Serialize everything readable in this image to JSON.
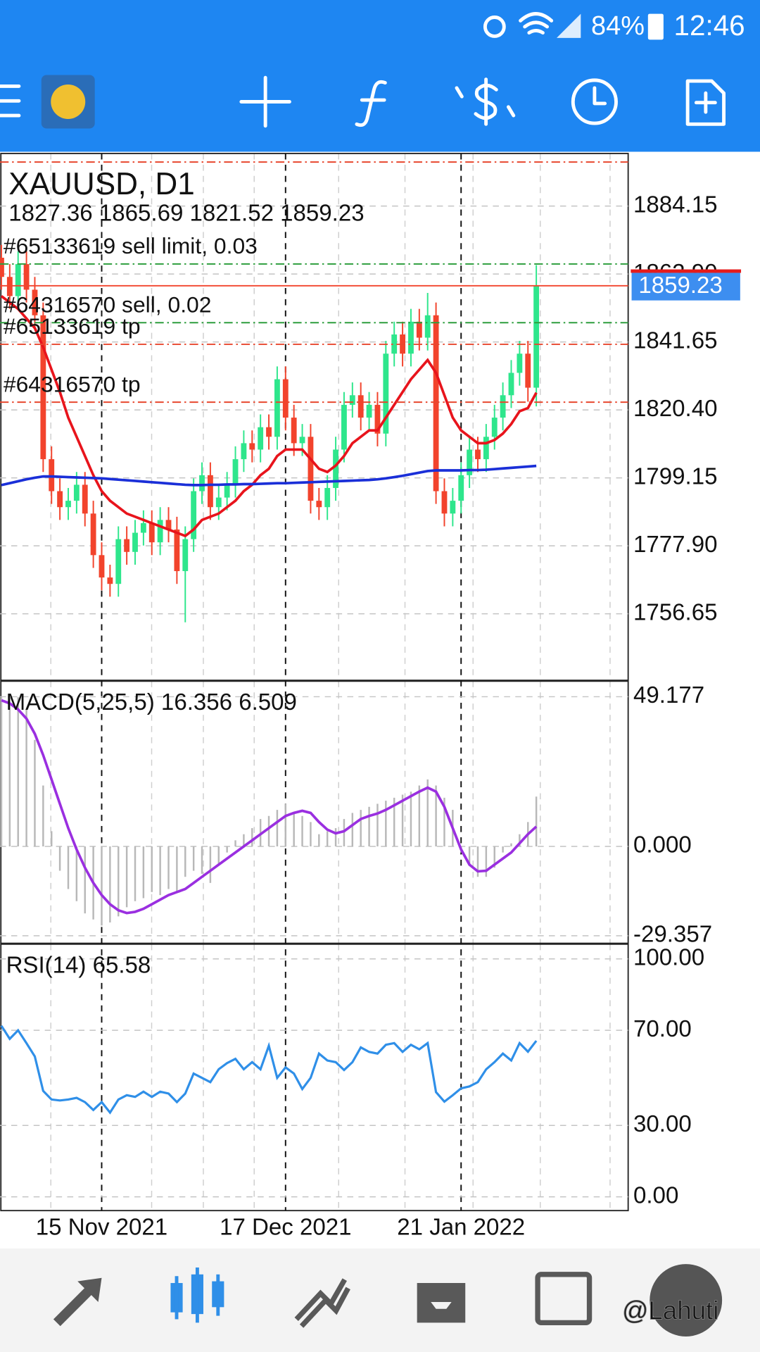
{
  "status_bar": {
    "battery": "84%",
    "time": "12:46"
  },
  "watermark": "@Lahuti",
  "chart_data": [
    {
      "type": "candlestick",
      "title": "XAUUSD, D1",
      "subtitle": "1827.36 1865.69 1821.52 1859.23",
      "categories": [
        null,
        null,
        null,
        null,
        null,
        null,
        null,
        null,
        null,
        null,
        null,
        null,
        "15 Nov 2021",
        null,
        null,
        null,
        null,
        null,
        null,
        null,
        null,
        null,
        null,
        null,
        null,
        null,
        null,
        null,
        null,
        null,
        null,
        null,
        null,
        null,
        "17 Dec 2021",
        null,
        null,
        null,
        null,
        null,
        null,
        null,
        null,
        null,
        null,
        null,
        null,
        null,
        null,
        null,
        null,
        null,
        null,
        null,
        null,
        "21 Jan 2022",
        null,
        null,
        null,
        null,
        null,
        null,
        null,
        null,
        null
      ],
      "open": [
        1868,
        1862,
        1856,
        1866,
        1858,
        1850,
        1805,
        1795,
        1790,
        1792,
        1797,
        1788,
        1775,
        1768,
        1766,
        1780,
        1776,
        1782,
        1785,
        1779,
        1786,
        1783,
        1770,
        1780,
        1795,
        1800,
        1790,
        1793,
        1797,
        1805,
        1810,
        1808,
        1815,
        1812,
        1830,
        1818,
        1810,
        1812,
        1792,
        1790,
        1796,
        1808,
        1822,
        1825,
        1818,
        1822,
        1813,
        1838,
        1844,
        1838,
        1848,
        1843,
        1850,
        1795,
        1788,
        1792,
        1800,
        1808,
        1805,
        1812,
        1818,
        1825,
        1832,
        1838,
        1827.36
      ],
      "high": [
        1872,
        1866,
        1870,
        1870,
        1862,
        1854,
        1809,
        1799,
        1796,
        1801,
        1801,
        1792,
        1779,
        1772,
        1784,
        1784,
        1786,
        1789,
        1789,
        1790,
        1790,
        1787,
        1784,
        1799,
        1804,
        1804,
        1797,
        1801,
        1809,
        1814,
        1814,
        1819,
        1819,
        1834,
        1834,
        1822,
        1816,
        1816,
        1796,
        1800,
        1812,
        1826,
        1829,
        1829,
        1826,
        1826,
        1842,
        1848,
        1848,
        1852,
        1852,
        1857,
        1854,
        1799,
        1796,
        1804,
        1812,
        1812,
        1816,
        1822,
        1829,
        1836,
        1842,
        1842,
        1865.69
      ],
      "low": [
        1858,
        1852,
        1852,
        1854,
        1846,
        1801,
        1791,
        1786,
        1786,
        1788,
        1784,
        1771,
        1764,
        1762,
        1762,
        1772,
        1772,
        1778,
        1775,
        1775,
        1779,
        1766,
        1754,
        1776,
        1791,
        1786,
        1786,
        1789,
        1793,
        1801,
        1804,
        1804,
        1808,
        1808,
        1814,
        1806,
        1806,
        1788,
        1786,
        1786,
        1792,
        1804,
        1818,
        1814,
        1814,
        1809,
        1809,
        1834,
        1834,
        1834,
        1839,
        1839,
        1791,
        1784,
        1784,
        1788,
        1796,
        1801,
        1801,
        1808,
        1814,
        1821,
        1828,
        1823,
        1821.52
      ],
      "close": [
        1862,
        1856,
        1866,
        1858,
        1850,
        1805,
        1795,
        1790,
        1792,
        1797,
        1788,
        1775,
        1768,
        1766,
        1780,
        1776,
        1782,
        1785,
        1779,
        1786,
        1783,
        1770,
        1780,
        1795,
        1800,
        1790,
        1793,
        1797,
        1805,
        1810,
        1808,
        1815,
        1812,
        1830,
        1818,
        1810,
        1812,
        1792,
        1790,
        1796,
        1808,
        1822,
        1825,
        1818,
        1822,
        1813,
        1838,
        1844,
        1838,
        1848,
        1843,
        1850,
        1795,
        1788,
        1792,
        1800,
        1808,
        1805,
        1812,
        1818,
        1825,
        1832,
        1838,
        1827.36,
        1859.23
      ],
      "up_color": "#2ee68c",
      "down_color": "#f2432c",
      "series": [
        {
          "color": "#e8141c",
          "values": [
            1856,
            1854,
            1852,
            1849,
            1846,
            1840,
            1833,
            1826,
            1818,
            1812,
            1806,
            1800,
            1795,
            1792,
            1790,
            1788,
            1787,
            1786,
            1785,
            1784,
            1783,
            1782,
            1781,
            1783,
            1786,
            1787,
            1788,
            1790,
            1792,
            1795,
            1797,
            1800,
            1802,
            1806,
            1808,
            1808,
            1808,
            1805,
            1802,
            1801,
            1803,
            1806,
            1810,
            1812,
            1814,
            1814,
            1818,
            1822,
            1826,
            1830,
            1833,
            1836,
            1832,
            1825,
            1818,
            1814,
            1812,
            1810,
            1810,
            1811,
            1813,
            1816,
            1820,
            1821,
            1825.8
          ]
        },
        {
          "color": "#1a2fd8",
          "values": [
            1796.9,
            1797.5,
            1798.1,
            1798.7,
            1799.2,
            1799.6,
            1799.6,
            1799.5,
            1799.4,
            1799.3,
            1799.2,
            1799.1,
            1799.0,
            1798.8,
            1798.6,
            1798.4,
            1798.2,
            1798.0,
            1797.8,
            1797.6,
            1797.4,
            1797.2,
            1797.0,
            1796.9,
            1796.9,
            1797.0,
            1797.0,
            1797.1,
            1797.1,
            1797.2,
            1797.2,
            1797.3,
            1797.4,
            1797.5,
            1797.5,
            1797.6,
            1797.7,
            1797.8,
            1797.9,
            1798.0,
            1798.1,
            1798.2,
            1798.3,
            1798.4,
            1798.5,
            1798.7,
            1799.0,
            1799.4,
            1799.8,
            1800.3,
            1800.8,
            1801.3,
            1801.5,
            1801.5,
            1801.5,
            1801.5,
            1801.6,
            1801.6,
            1801.7,
            1801.9,
            1802.1,
            1802.3,
            1802.5,
            1802.7,
            1802.9
          ]
        }
      ],
      "levels": [
        {
          "value": 1897.93,
          "color": "#e8472e"
        },
        {
          "label": "#65133619 sell limit, 0.03",
          "value": 1866.05,
          "color": "#2e9e3e"
        },
        {
          "label": "#64316570 sell, 0.02",
          "value": 1847.68,
          "color": "#2e9e3e"
        },
        {
          "label": "#65133619 tp",
          "value": 1840.93,
          "color": "#e8472e"
        },
        {
          "label": "#64316570 tp",
          "value": 1822.83,
          "color": "#e8472e"
        }
      ],
      "price_tag_color": "#3d8ef0",
      "ylim": [
        1735.85,
        1900.6
      ],
      "yticks": [
        1884.15,
        {
          "value": 1862.9,
          "label": "1862.90"
        },
        1841.65,
        {
          "value": 1820.4,
          "label": "1820.40"
        },
        1799.15,
        {
          "value": 1777.9,
          "label": "1777.90"
        },
        1756.65
      ],
      "grid": true
    },
    {
      "type": "macd",
      "title": "MACD(5,25,5) 16.356 6.509",
      "histogram": [
        49,
        49,
        49,
        45,
        35,
        20,
        5,
        -8,
        -14,
        -18,
        -22,
        -24,
        -26,
        -25,
        -23,
        -20,
        -18,
        -17,
        -15,
        -16,
        -14,
        -15,
        -10,
        -8,
        -9,
        -12,
        -6,
        -2,
        2,
        4,
        6,
        9,
        10,
        12,
        14,
        11,
        10,
        8,
        4,
        5,
        6,
        9,
        11,
        12,
        13,
        14,
        15,
        16,
        17,
        18,
        20,
        22,
        20,
        16,
        12,
        -2,
        -6,
        -10,
        -10,
        -7,
        -2,
        1,
        4,
        8,
        16.356
      ],
      "signal": [
        48,
        47,
        45,
        42,
        37,
        30,
        22,
        14,
        6,
        -1,
        -7,
        -12,
        -16,
        -19,
        -21,
        -21.9,
        -21.5,
        -20.5,
        -19,
        -17.5,
        -16,
        -15,
        -14,
        -12,
        -10,
        -8,
        -6,
        -4,
        -2,
        0,
        2,
        4,
        6,
        8,
        10,
        11,
        11.7,
        11,
        8,
        5.5,
        4.3,
        5,
        7,
        9,
        10,
        10.8,
        12,
        13.5,
        15,
        16.5,
        18,
        19.3,
        18,
        13,
        6,
        -1,
        -6,
        -8.2,
        -8,
        -6,
        -4,
        -2,
        1,
        4,
        6.509
      ],
      "histogram_color": "#b8b8b8",
      "signal_color": "#9a2fe0",
      "ylim": [
        -31.84,
        54.29
      ],
      "yticks": [
        49.177,
        {
          "value": 0,
          "label": "0.000"
        },
        -29.357
      ],
      "grid": true
    },
    {
      "type": "rsi",
      "title": "RSI(14) 65.58",
      "values": [
        71.9,
        66.4,
        70,
        64.6,
        59,
        44.5,
        40.9,
        40.5,
        40.9,
        41.6,
        39.8,
        36.5,
        39.8,
        35.4,
        40.9,
        42.7,
        42,
        44.2,
        42,
        44.2,
        43.4,
        39.8,
        43.4,
        51.8,
        50,
        48.2,
        53.6,
        56.2,
        58,
        53.6,
        56.6,
        53.6,
        63.5,
        50,
        54.4,
        51.8,
        45.3,
        50,
        60.2,
        57.3,
        56.6,
        53.3,
        56.6,
        62.8,
        60.9,
        60.2,
        63.9,
        64.6,
        60.9,
        63.9,
        62,
        64.6,
        44,
        40,
        42.7,
        45.6,
        46.4,
        48.2,
        53.6,
        56.6,
        60.2,
        57.3,
        64.6,
        61,
        65.58
      ],
      "color": "#2f8fe8",
      "ylim": [
        -5.8,
        106.2
      ],
      "yticks": [
        {
          "value": 100,
          "label": "100.00"
        },
        {
          "value": 70,
          "label": "70.00"
        },
        {
          "value": 30,
          "label": "30.00"
        },
        {
          "value": 0,
          "label": "0.00"
        }
      ],
      "grid": true
    }
  ]
}
